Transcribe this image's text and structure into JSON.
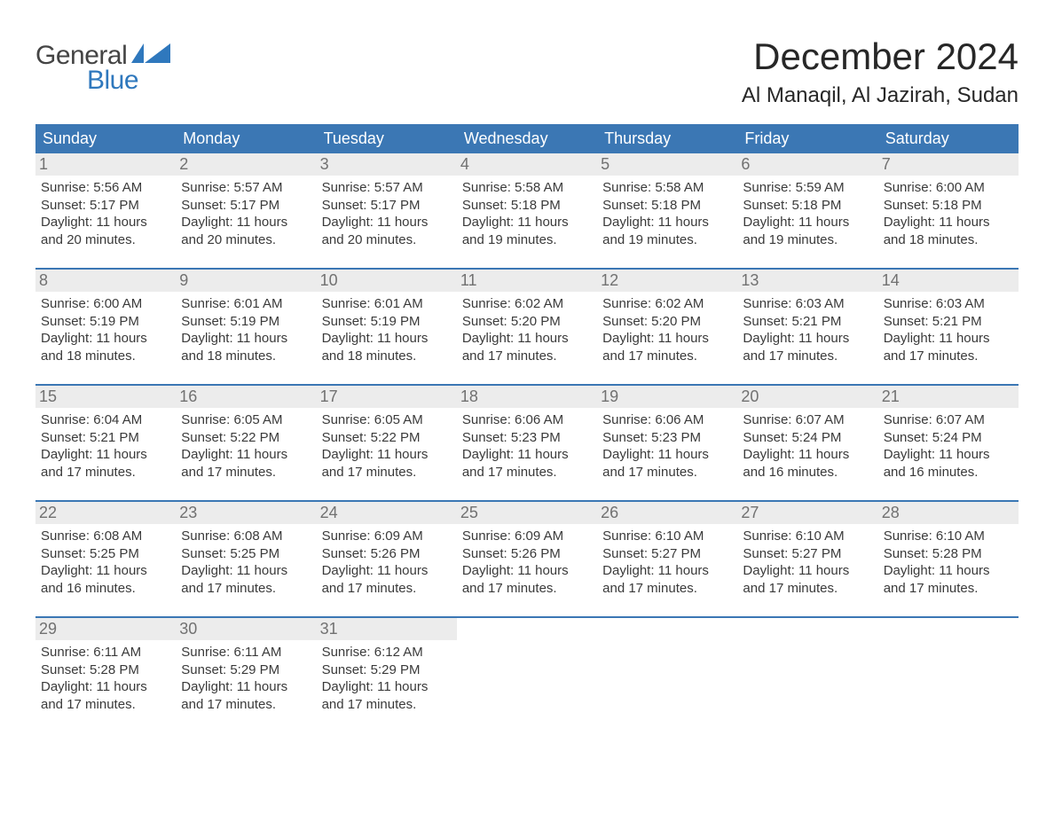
{
  "brand": {
    "word1": "General",
    "word2": "Blue"
  },
  "header": {
    "month_title": "December 2024",
    "location": "Al Manaqil, Al Jazirah, Sudan"
  },
  "colors": {
    "header_bg": "#3b77b4",
    "row_divider": "#3b77b4",
    "daynum_bg": "#ececec",
    "daynum_fg": "#717171",
    "text": "#3a3a3a",
    "brand_blue": "#2f78bd",
    "brand_gray": "#444444",
    "page_bg": "#ffffff"
  },
  "weekdays": [
    "Sunday",
    "Monday",
    "Tuesday",
    "Wednesday",
    "Thursday",
    "Friday",
    "Saturday"
  ],
  "weeks": [
    [
      {
        "n": "1",
        "sunrise": "Sunrise: 5:56 AM",
        "sunset": "Sunset: 5:17 PM",
        "day1": "Daylight: 11 hours",
        "day2": "and 20 minutes."
      },
      {
        "n": "2",
        "sunrise": "Sunrise: 5:57 AM",
        "sunset": "Sunset: 5:17 PM",
        "day1": "Daylight: 11 hours",
        "day2": "and 20 minutes."
      },
      {
        "n": "3",
        "sunrise": "Sunrise: 5:57 AM",
        "sunset": "Sunset: 5:17 PM",
        "day1": "Daylight: 11 hours",
        "day2": "and 20 minutes."
      },
      {
        "n": "4",
        "sunrise": "Sunrise: 5:58 AM",
        "sunset": "Sunset: 5:18 PM",
        "day1": "Daylight: 11 hours",
        "day2": "and 19 minutes."
      },
      {
        "n": "5",
        "sunrise": "Sunrise: 5:58 AM",
        "sunset": "Sunset: 5:18 PM",
        "day1": "Daylight: 11 hours",
        "day2": "and 19 minutes."
      },
      {
        "n": "6",
        "sunrise": "Sunrise: 5:59 AM",
        "sunset": "Sunset: 5:18 PM",
        "day1": "Daylight: 11 hours",
        "day2": "and 19 minutes."
      },
      {
        "n": "7",
        "sunrise": "Sunrise: 6:00 AM",
        "sunset": "Sunset: 5:18 PM",
        "day1": "Daylight: 11 hours",
        "day2": "and 18 minutes."
      }
    ],
    [
      {
        "n": "8",
        "sunrise": "Sunrise: 6:00 AM",
        "sunset": "Sunset: 5:19 PM",
        "day1": "Daylight: 11 hours",
        "day2": "and 18 minutes."
      },
      {
        "n": "9",
        "sunrise": "Sunrise: 6:01 AM",
        "sunset": "Sunset: 5:19 PM",
        "day1": "Daylight: 11 hours",
        "day2": "and 18 minutes."
      },
      {
        "n": "10",
        "sunrise": "Sunrise: 6:01 AM",
        "sunset": "Sunset: 5:19 PM",
        "day1": "Daylight: 11 hours",
        "day2": "and 18 minutes."
      },
      {
        "n": "11",
        "sunrise": "Sunrise: 6:02 AM",
        "sunset": "Sunset: 5:20 PM",
        "day1": "Daylight: 11 hours",
        "day2": "and 17 minutes."
      },
      {
        "n": "12",
        "sunrise": "Sunrise: 6:02 AM",
        "sunset": "Sunset: 5:20 PM",
        "day1": "Daylight: 11 hours",
        "day2": "and 17 minutes."
      },
      {
        "n": "13",
        "sunrise": "Sunrise: 6:03 AM",
        "sunset": "Sunset: 5:21 PM",
        "day1": "Daylight: 11 hours",
        "day2": "and 17 minutes."
      },
      {
        "n": "14",
        "sunrise": "Sunrise: 6:03 AM",
        "sunset": "Sunset: 5:21 PM",
        "day1": "Daylight: 11 hours",
        "day2": "and 17 minutes."
      }
    ],
    [
      {
        "n": "15",
        "sunrise": "Sunrise: 6:04 AM",
        "sunset": "Sunset: 5:21 PM",
        "day1": "Daylight: 11 hours",
        "day2": "and 17 minutes."
      },
      {
        "n": "16",
        "sunrise": "Sunrise: 6:05 AM",
        "sunset": "Sunset: 5:22 PM",
        "day1": "Daylight: 11 hours",
        "day2": "and 17 minutes."
      },
      {
        "n": "17",
        "sunrise": "Sunrise: 6:05 AM",
        "sunset": "Sunset: 5:22 PM",
        "day1": "Daylight: 11 hours",
        "day2": "and 17 minutes."
      },
      {
        "n": "18",
        "sunrise": "Sunrise: 6:06 AM",
        "sunset": "Sunset: 5:23 PM",
        "day1": "Daylight: 11 hours",
        "day2": "and 17 minutes."
      },
      {
        "n": "19",
        "sunrise": "Sunrise: 6:06 AM",
        "sunset": "Sunset: 5:23 PM",
        "day1": "Daylight: 11 hours",
        "day2": "and 17 minutes."
      },
      {
        "n": "20",
        "sunrise": "Sunrise: 6:07 AM",
        "sunset": "Sunset: 5:24 PM",
        "day1": "Daylight: 11 hours",
        "day2": "and 16 minutes."
      },
      {
        "n": "21",
        "sunrise": "Sunrise: 6:07 AM",
        "sunset": "Sunset: 5:24 PM",
        "day1": "Daylight: 11 hours",
        "day2": "and 16 minutes."
      }
    ],
    [
      {
        "n": "22",
        "sunrise": "Sunrise: 6:08 AM",
        "sunset": "Sunset: 5:25 PM",
        "day1": "Daylight: 11 hours",
        "day2": "and 16 minutes."
      },
      {
        "n": "23",
        "sunrise": "Sunrise: 6:08 AM",
        "sunset": "Sunset: 5:25 PM",
        "day1": "Daylight: 11 hours",
        "day2": "and 17 minutes."
      },
      {
        "n": "24",
        "sunrise": "Sunrise: 6:09 AM",
        "sunset": "Sunset: 5:26 PM",
        "day1": "Daylight: 11 hours",
        "day2": "and 17 minutes."
      },
      {
        "n": "25",
        "sunrise": "Sunrise: 6:09 AM",
        "sunset": "Sunset: 5:26 PM",
        "day1": "Daylight: 11 hours",
        "day2": "and 17 minutes."
      },
      {
        "n": "26",
        "sunrise": "Sunrise: 6:10 AM",
        "sunset": "Sunset: 5:27 PM",
        "day1": "Daylight: 11 hours",
        "day2": "and 17 minutes."
      },
      {
        "n": "27",
        "sunrise": "Sunrise: 6:10 AM",
        "sunset": "Sunset: 5:27 PM",
        "day1": "Daylight: 11 hours",
        "day2": "and 17 minutes."
      },
      {
        "n": "28",
        "sunrise": "Sunrise: 6:10 AM",
        "sunset": "Sunset: 5:28 PM",
        "day1": "Daylight: 11 hours",
        "day2": "and 17 minutes."
      }
    ],
    [
      {
        "n": "29",
        "sunrise": "Sunrise: 6:11 AM",
        "sunset": "Sunset: 5:28 PM",
        "day1": "Daylight: 11 hours",
        "day2": "and 17 minutes."
      },
      {
        "n": "30",
        "sunrise": "Sunrise: 6:11 AM",
        "sunset": "Sunset: 5:29 PM",
        "day1": "Daylight: 11 hours",
        "day2": "and 17 minutes."
      },
      {
        "n": "31",
        "sunrise": "Sunrise: 6:12 AM",
        "sunset": "Sunset: 5:29 PM",
        "day1": "Daylight: 11 hours",
        "day2": "and 17 minutes."
      },
      {
        "empty": true
      },
      {
        "empty": true
      },
      {
        "empty": true
      },
      {
        "empty": true
      }
    ]
  ]
}
